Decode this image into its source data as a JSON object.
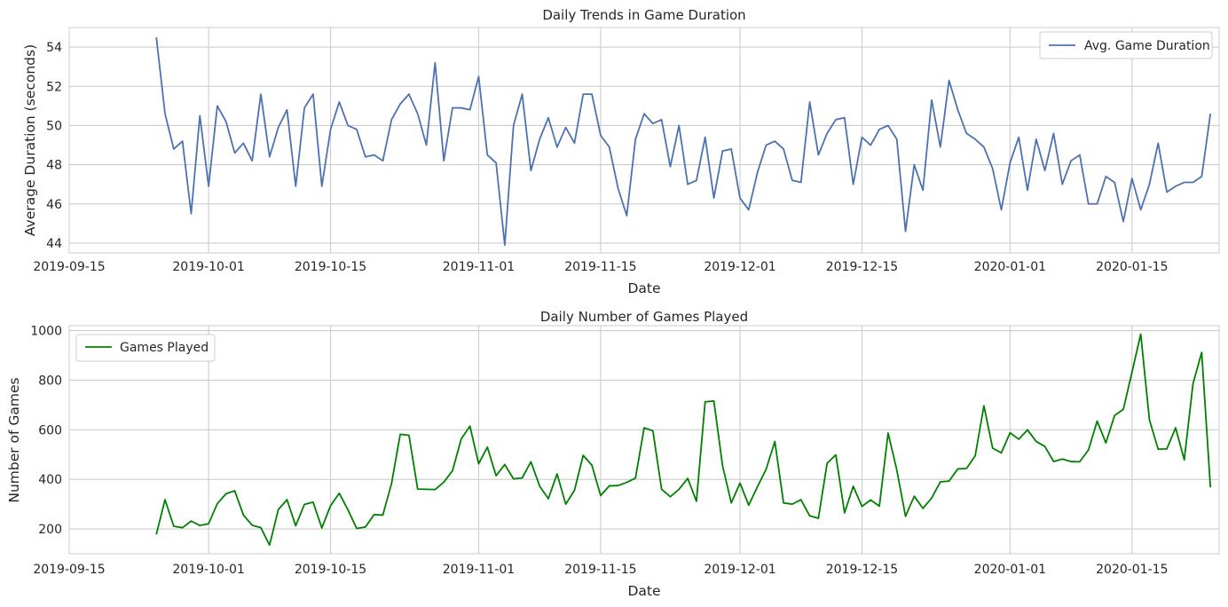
{
  "chart_data": [
    {
      "type": "line",
      "title": "Daily Trends in Game Duration",
      "xlabel": "Date",
      "ylabel": "Average Duration (seconds)",
      "xlim": [
        "2019-09-15",
        "2020-01-25"
      ],
      "ylim": [
        43.5,
        55.0
      ],
      "x_ticks": [
        "2019-09-15",
        "2019-10-01",
        "2019-10-15",
        "2019-11-01",
        "2019-11-15",
        "2019-12-01",
        "2019-12-15",
        "2020-01-01",
        "2020-01-15"
      ],
      "y_ticks": [
        44,
        46,
        48,
        50,
        52,
        54
      ],
      "grid": true,
      "legend": "top-right",
      "series": [
        {
          "name": "Avg. Game Duration",
          "color": "#4c72b0",
          "start_date": "2019-09-25",
          "values": [
            54.5,
            50.6,
            48.8,
            49.2,
            45.5,
            50.5,
            46.9,
            51.0,
            50.2,
            48.6,
            49.1,
            48.2,
            51.6,
            48.4,
            49.9,
            50.8,
            46.9,
            50.9,
            51.6,
            46.9,
            49.8,
            51.2,
            50.0,
            49.8,
            48.4,
            48.5,
            48.2,
            50.3,
            51.1,
            51.6,
            50.6,
            49.0,
            53.2,
            48.2,
            50.9,
            50.9,
            50.8,
            52.5,
            48.5,
            48.1,
            43.9,
            50.0,
            51.6,
            47.7,
            49.3,
            50.4,
            48.9,
            49.9,
            49.1,
            51.6,
            51.6,
            49.5,
            48.9,
            46.8,
            45.4,
            49.3,
            50.6,
            50.1,
            50.3,
            47.9,
            50.0,
            47.0,
            47.2,
            49.4,
            46.3,
            48.7,
            48.8,
            46.3,
            45.7,
            47.6,
            49.0,
            49.2,
            48.8,
            47.2,
            47.1,
            51.2,
            48.5,
            49.6,
            50.3,
            50.4,
            47.0,
            49.4,
            49.0,
            49.8,
            50.0,
            49.3,
            44.6,
            48.0,
            46.7,
            51.3,
            48.9,
            52.3,
            50.8,
            49.6,
            49.3,
            48.9,
            47.8,
            45.7,
            48.1,
            49.4,
            46.7,
            49.3,
            47.7,
            49.6,
            47.0,
            48.2,
            48.5,
            46.0,
            46.0,
            47.4,
            47.1,
            45.1,
            47.3,
            45.7,
            47.0,
            49.1,
            46.6,
            46.9,
            47.1,
            47.1,
            47.4,
            50.6
          ]
        }
      ]
    },
    {
      "type": "line",
      "title": "Daily Number of Games Played",
      "xlabel": "Date",
      "ylabel": "Number of Games",
      "xlim": [
        "2019-09-15",
        "2020-01-25"
      ],
      "ylim": [
        100,
        1020
      ],
      "x_ticks": [
        "2019-09-15",
        "2019-10-01",
        "2019-10-15",
        "2019-11-01",
        "2019-11-15",
        "2019-12-01",
        "2019-12-15",
        "2020-01-01",
        "2020-01-15"
      ],
      "y_ticks": [
        200,
        400,
        600,
        800,
        1000
      ],
      "grid": true,
      "legend": "top-left",
      "series": [
        {
          "name": "Games Played",
          "color": "#008000",
          "start_date": "2019-09-25",
          "values": [
            178,
            318,
            211,
            205,
            232,
            214,
            221,
            302,
            342,
            354,
            256,
            215,
            205,
            135,
            278,
            318,
            213,
            299,
            308,
            204,
            294,
            344,
            277,
            202,
            208,
            258,
            256,
            383,
            582,
            578,
            361,
            360,
            359,
            389,
            435,
            563,
            615,
            463,
            530,
            415,
            460,
            402,
            406,
            471,
            373,
            322,
            422,
            300,
            356,
            497,
            457,
            335,
            374,
            375,
            388,
            405,
            608,
            596,
            360,
            330,
            360,
            404,
            312,
            713,
            716,
            455,
            305,
            385,
            296,
            370,
            441,
            553,
            305,
            300,
            318,
            253,
            243,
            465,
            499,
            265,
            372,
            291,
            317,
            292,
            587,
            438,
            251,
            332,
            283,
            325,
            390,
            393,
            442,
            444,
            495,
            697,
            526,
            507,
            588,
            562,
            600,
            553,
            533,
            472,
            482,
            472,
            471,
            519,
            635,
            547,
            658,
            682,
            833,
            986,
            640,
            522,
            523,
            608,
            479,
            786,
            912,
            368
          ]
        }
      ]
    }
  ]
}
